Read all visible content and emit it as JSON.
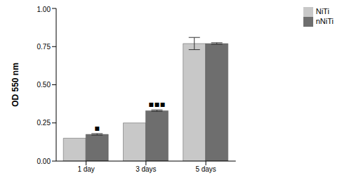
{
  "chart_data": {
    "type": "bar",
    "categories": [
      "1 day",
      "3 days",
      "5 days"
    ],
    "series": [
      {
        "name": "NiTi",
        "color": "#c8c8c8",
        "values": [
          0.15,
          0.25,
          0.77
        ],
        "errors": [
          0,
          0,
          0.04
        ]
      },
      {
        "name": "nNiTi",
        "color": "#6e6e6e",
        "values": [
          0.175,
          0.33,
          0.77
        ],
        "errors": [
          0.005,
          0.005,
          0.005
        ]
      }
    ],
    "y_label": "OD 550 nm",
    "ylim": [
      0,
      1
    ],
    "yticks": [
      {
        "value": 0,
        "label": "0.00"
      },
      {
        "value": 0.25,
        "label": "0.25"
      },
      {
        "value": 0.5,
        "label": "0.50"
      },
      {
        "value": 0.75,
        "label": "0.75"
      },
      {
        "value": 1,
        "label": "1.00"
      }
    ],
    "legend": "upper right",
    "annotations": [
      {
        "text": "▪",
        "category": "1 day",
        "series": "nNiTi"
      },
      {
        "text": "▪▪▪",
        "category": "3 days",
        "series": "nNiTi"
      }
    ]
  }
}
